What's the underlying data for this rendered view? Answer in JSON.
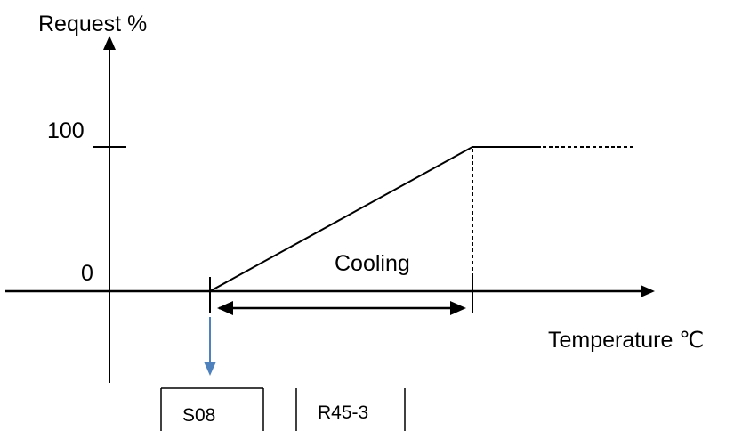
{
  "axes": {
    "y_label": "Request %",
    "x_label": "Temperature ℃",
    "y_tick_high": "100",
    "y_tick_low": "0"
  },
  "region": {
    "label": "Cooling"
  },
  "parameters": {
    "start_param": "S08",
    "range_param": "R45-3"
  },
  "colors": {
    "line": "#000000",
    "pointer_arrow": "#4f81bd"
  }
}
